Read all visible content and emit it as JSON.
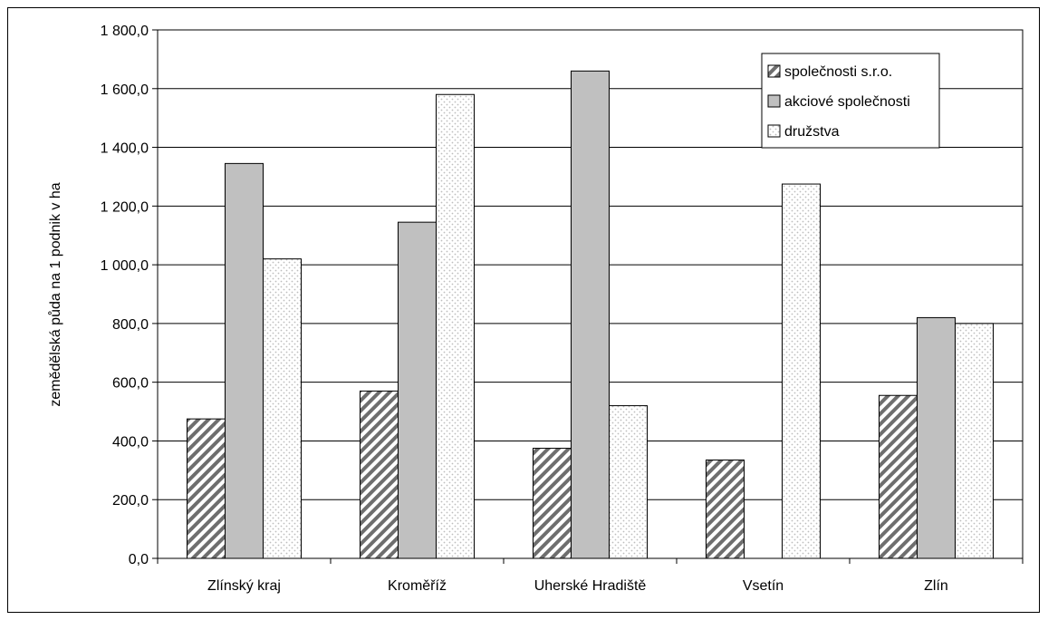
{
  "chart_data": {
    "type": "bar",
    "title": "",
    "xlabel": "",
    "ylabel": "zemědělská půda na 1 podnik v ha",
    "ylim": [
      0,
      1800
    ],
    "yticks": [
      0,
      200,
      400,
      600,
      800,
      1000,
      1200,
      1400,
      1600,
      1800
    ],
    "ytick_labels": [
      "0,0",
      "200,0",
      "400,0",
      "600,0",
      "800,0",
      "1 000,0",
      "1 200,0",
      "1 400,0",
      "1 600,0",
      "1 800,0"
    ],
    "categories": [
      "Zlínský kraj",
      "Kroměříž",
      "Uherské Hradiště",
      "Vsetín",
      "Zlín"
    ],
    "series": [
      {
        "name": "společnosti s.r.o.",
        "values": [
          475,
          570,
          375,
          335,
          555
        ]
      },
      {
        "name": "akciové společnosti",
        "values": [
          1345,
          1145,
          1660,
          0,
          820
        ]
      },
      {
        "name": "družstva",
        "values": [
          1020,
          1580,
          520,
          1275,
          800
        ]
      }
    ],
    "grid": true,
    "legend_position": "top-right",
    "colors": {
      "sro_stripe": "#6e6e6e",
      "as_fill": "#c0c0c0",
      "druzstva_dots": "#bdbdbd"
    }
  }
}
